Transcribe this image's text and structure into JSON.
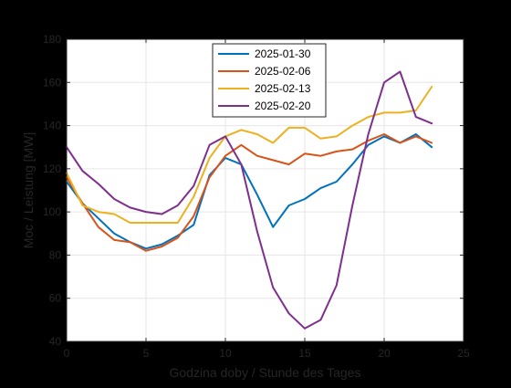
{
  "figure": {
    "background": "#000000",
    "axes_background": "#ffffff",
    "grid_color": "#e6e6e6",
    "text_color": "#262626"
  },
  "chart_data": {
    "type": "line",
    "title": "",
    "xlabel": "Godzina doby / Stunde des Tages",
    "ylabel": "Moc / Leistung [MW]",
    "xlim": [
      0,
      25
    ],
    "ylim": [
      40,
      180
    ],
    "xticks": [
      0,
      5,
      10,
      15,
      20,
      25
    ],
    "yticks": [
      40,
      60,
      80,
      100,
      120,
      140,
      160,
      180
    ],
    "grid": true,
    "legend_position": "top-center",
    "x": [
      0,
      1,
      2,
      3,
      4,
      5,
      6,
      7,
      8,
      9,
      10,
      11,
      12,
      13,
      14,
      15,
      16,
      17,
      18,
      19,
      20,
      21,
      22,
      23
    ],
    "series": [
      {
        "name": "2025-01-30",
        "color": "#0072bd",
        "values": [
          114,
          104,
          97,
          90,
          86,
          83,
          85,
          89,
          94,
          117,
          125,
          122,
          108,
          93,
          103,
          106,
          111,
          114,
          122,
          131,
          135,
          132,
          136,
          130
        ]
      },
      {
        "name": "2025-02-06",
        "color": "#d95319",
        "values": [
          116,
          104,
          93,
          87,
          86,
          82,
          84,
          88,
          98,
          116,
          126,
          131,
          126,
          124,
          122,
          127,
          126,
          128,
          129,
          133,
          136,
          132,
          135,
          132
        ]
      },
      {
        "name": "2025-02-13",
        "color": "#edb120",
        "values": [
          118,
          103,
          100,
          99,
          95,
          95,
          95,
          95,
          107,
          125,
          135,
          138,
          136,
          132,
          139,
          139,
          134,
          135,
          140,
          144,
          146,
          146,
          147,
          158
        ]
      },
      {
        "name": "2025-02-20",
        "color": "#7e2f8e",
        "values": [
          130,
          119,
          113,
          106,
          102,
          100,
          99,
          103,
          112,
          131,
          135,
          122,
          91,
          65,
          53,
          46,
          50,
          66,
          103,
          136,
          160,
          165,
          144,
          141
        ]
      }
    ]
  }
}
